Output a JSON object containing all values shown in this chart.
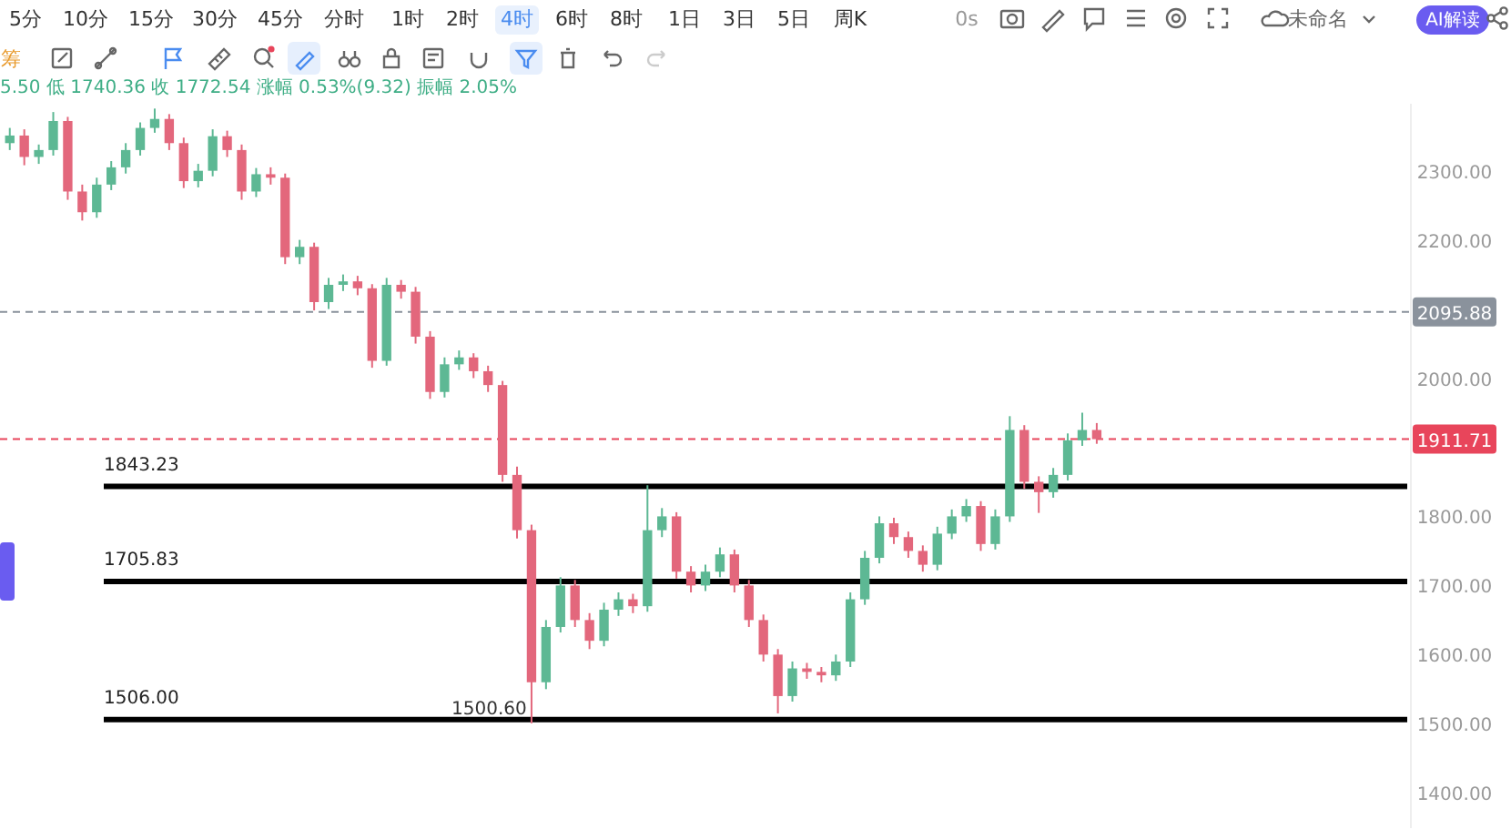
{
  "chart_data": {
    "type": "candlestick",
    "annotations": [
      "5分",
      "10分",
      "15分",
      "30分",
      "45分",
      "分时",
      "1时",
      "2时",
      "4时",
      "6时",
      "8时",
      "1日",
      "3日",
      "5日",
      "周K",
      "0s",
      "未命名",
      "AI解读",
      "筹",
      "5.50 低 1740.36 收 1772.54 涨幅 0.53%(9.32) 振幅 2.05%",
      {
        "text": "1500.60",
        "y": 1500.6
      }
    ],
    "categories": [
      null,
      null,
      null,
      null,
      null,
      null,
      null,
      null,
      null,
      null,
      null,
      null,
      null,
      null,
      null,
      null,
      null,
      null,
      null,
      null,
      null,
      null,
      null,
      null,
      null,
      null,
      null,
      null,
      null,
      null,
      null,
      null,
      null,
      null,
      null,
      null,
      null,
      null,
      null,
      null,
      null,
      null,
      null,
      null,
      null,
      null,
      null,
      null,
      null,
      null,
      null,
      null,
      null,
      null,
      null,
      null,
      null,
      null,
      null,
      null,
      null,
      null,
      null,
      null,
      null,
      null,
      null,
      null,
      null,
      null,
      null,
      null,
      null,
      null,
      null,
      null,
      null,
      null,
      null,
      null,
      null,
      null,
      null,
      null,
      null,
      null,
      null,
      null,
      null,
      null,
      null,
      null,
      null,
      null,
      null,
      null,
      null
    ],
    "ohlc": [
      [
        2340,
        2362,
        2330,
        2351
      ],
      [
        2351,
        2360,
        2308,
        2320
      ],
      [
        2320,
        2338,
        2310,
        2330
      ],
      [
        2330,
        2385,
        2322,
        2372
      ],
      [
        2372,
        2378,
        2258,
        2270
      ],
      [
        2270,
        2280,
        2228,
        2240
      ],
      [
        2240,
        2290,
        2232,
        2280
      ],
      [
        2280,
        2314,
        2272,
        2305
      ],
      [
        2305,
        2340,
        2296,
        2330
      ],
      [
        2330,
        2370,
        2322,
        2362
      ],
      [
        2362,
        2390,
        2355,
        2375
      ],
      [
        2375,
        2382,
        2330,
        2340
      ],
      [
        2340,
        2348,
        2275,
        2285
      ],
      [
        2285,
        2310,
        2276,
        2300
      ],
      [
        2300,
        2360,
        2292,
        2350
      ],
      [
        2350,
        2358,
        2320,
        2330
      ],
      [
        2330,
        2338,
        2258,
        2270
      ],
      [
        2270,
        2304,
        2262,
        2295
      ],
      [
        2295,
        2305,
        2280,
        2290
      ],
      [
        2290,
        2296,
        2165,
        2175
      ],
      [
        2175,
        2200,
        2165,
        2190
      ],
      [
        2190,
        2196,
        2098,
        2110
      ],
      [
        2110,
        2145,
        2100,
        2135
      ],
      [
        2135,
        2150,
        2126,
        2140
      ],
      [
        2140,
        2148,
        2120,
        2130
      ],
      [
        2130,
        2136,
        2015,
        2025
      ],
      [
        2025,
        2145,
        2018,
        2135
      ],
      [
        2135,
        2142,
        2115,
        2125
      ],
      [
        2125,
        2132,
        2050,
        2060
      ],
      [
        2060,
        2068,
        1970,
        1980
      ],
      [
        1980,
        2030,
        1972,
        2020
      ],
      [
        2020,
        2040,
        2012,
        2030
      ],
      [
        2030,
        2036,
        2000,
        2010
      ],
      [
        2010,
        2018,
        1980,
        1990
      ],
      [
        1990,
        1996,
        1850,
        1860
      ],
      [
        1860,
        1872,
        1768,
        1780
      ],
      [
        1780,
        1788,
        1500.6,
        1560
      ],
      [
        1560,
        1650,
        1550,
        1640
      ],
      [
        1640,
        1712,
        1632,
        1700
      ],
      [
        1700,
        1708,
        1640,
        1650
      ],
      [
        1650,
        1660,
        1608,
        1620
      ],
      [
        1620,
        1675,
        1612,
        1665
      ],
      [
        1665,
        1690,
        1656,
        1680
      ],
      [
        1680,
        1688,
        1660,
        1670
      ],
      [
        1670,
        1845,
        1662,
        1780
      ],
      [
        1780,
        1812,
        1770,
        1800
      ],
      [
        1800,
        1806,
        1710,
        1720
      ],
      [
        1720,
        1728,
        1690,
        1700
      ],
      [
        1700,
        1730,
        1692,
        1720
      ],
      [
        1720,
        1755,
        1712,
        1745
      ],
      [
        1745,
        1752,
        1690,
        1700
      ],
      [
        1700,
        1708,
        1640,
        1650
      ],
      [
        1650,
        1658,
        1590,
        1600
      ],
      [
        1600,
        1608,
        1515,
        1540
      ],
      [
        1540,
        1590,
        1532,
        1580
      ],
      [
        1580,
        1588,
        1565,
        1575
      ],
      [
        1575,
        1582,
        1560,
        1570
      ],
      [
        1570,
        1600,
        1562,
        1590
      ],
      [
        1590,
        1690,
        1582,
        1680
      ],
      [
        1680,
        1750,
        1672,
        1740
      ],
      [
        1740,
        1800,
        1732,
        1790
      ],
      [
        1790,
        1798,
        1760,
        1770
      ],
      [
        1770,
        1778,
        1740,
        1750
      ],
      [
        1750,
        1758,
        1720,
        1730
      ],
      [
        1730,
        1785,
        1722,
        1775
      ],
      [
        1775,
        1810,
        1767,
        1800
      ],
      [
        1800,
        1825,
        1792,
        1815
      ],
      [
        1815,
        1822,
        1750,
        1760
      ],
      [
        1760,
        1810,
        1752,
        1800
      ],
      [
        1800,
        1945,
        1792,
        1925
      ],
      [
        1925,
        1932,
        1840,
        1850
      ],
      [
        1850,
        1858,
        1805,
        1835
      ],
      [
        1835,
        1870,
        1827,
        1860
      ],
      [
        1860,
        1920,
        1852,
        1910
      ],
      [
        1910,
        1950,
        1902,
        1925
      ],
      [
        1925,
        1935,
        1905,
        1911.71
      ],
      null,
      null,
      null,
      null,
      null,
      null,
      null,
      null,
      null,
      null,
      null,
      null,
      null,
      null,
      null,
      null,
      null,
      null,
      null,
      null,
      null
    ],
    "ylim": [
      1349,
      2397
    ],
    "yticks": [
      {
        "value": 1400,
        "label": "1400.00"
      },
      {
        "value": 1500,
        "label": "1500.00"
      },
      {
        "value": 1600,
        "label": "1600.00"
      },
      {
        "value": 1700,
        "label": "1700.00"
      },
      {
        "value": 1800,
        "label": "1800.00"
      },
      {
        "value": 2000,
        "label": "2000.00"
      },
      {
        "value": 2200,
        "label": "2200.00"
      },
      {
        "value": 2300,
        "label": "2300.00"
      }
    ],
    "tick_labels": "y",
    "ref_lines": [
      {
        "axis": "y",
        "value": 2095.88,
        "label": "2095.88",
        "color": "#8a929c",
        "line_style": "dashed"
      },
      {
        "axis": "y",
        "value": 1911.71,
        "label": "1911.71",
        "color": "#e8455b",
        "line_style": "dashed"
      },
      {
        "axis": "y",
        "value": 1843.23,
        "label": "1843.23",
        "color": "#000000",
        "line_style": "solid"
      },
      {
        "axis": "y",
        "value": 1705.83,
        "label": "1705.83",
        "color": "#000000",
        "line_style": "solid"
      },
      {
        "axis": "y",
        "value": 1506.0,
        "label": "1506.00",
        "color": "#000000",
        "line_style": "solid"
      }
    ]
  }
}
